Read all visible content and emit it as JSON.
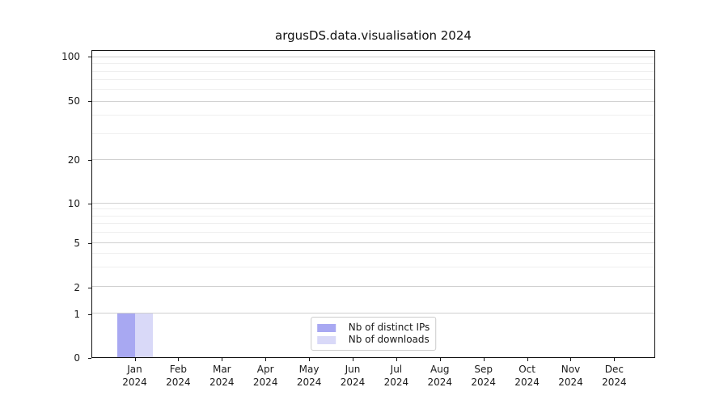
{
  "title": "argusDS.data.visualisation 2024",
  "chart_data": {
    "type": "bar",
    "title": "argusDS.data.visualisation 2024",
    "categories": [
      {
        "month": "Jan",
        "year": "2024"
      },
      {
        "month": "Feb",
        "year": "2024"
      },
      {
        "month": "Mar",
        "year": "2024"
      },
      {
        "month": "Apr",
        "year": "2024"
      },
      {
        "month": "May",
        "year": "2024"
      },
      {
        "month": "Jun",
        "year": "2024"
      },
      {
        "month": "Jul",
        "year": "2024"
      },
      {
        "month": "Aug",
        "year": "2024"
      },
      {
        "month": "Sep",
        "year": "2024"
      },
      {
        "month": "Oct",
        "year": "2024"
      },
      {
        "month": "Nov",
        "year": "2024"
      },
      {
        "month": "Dec",
        "year": "2024"
      }
    ],
    "series": [
      {
        "name": "Nb of distinct IPs",
        "color": "#a8a8f2",
        "values": [
          1,
          0,
          0,
          0,
          0,
          0,
          0,
          0,
          0,
          0,
          0,
          0
        ]
      },
      {
        "name": "Nb of downloads",
        "color": "#d9d9f8",
        "values": [
          1,
          0,
          0,
          0,
          0,
          0,
          0,
          0,
          0,
          0,
          0,
          0
        ]
      }
    ],
    "y_axis": {
      "scale": "symlog",
      "major_ticks": [
        0,
        1,
        2,
        5,
        10,
        20,
        50,
        100
      ],
      "minor_ticks": [
        3,
        4,
        6,
        7,
        8,
        9,
        30,
        40,
        60,
        70,
        80,
        90
      ]
    },
    "grid": {
      "major_color": "#d0d0d0",
      "minor_color": "#efefef",
      "vertical": false
    },
    "legend": {
      "position": "lower center"
    }
  }
}
